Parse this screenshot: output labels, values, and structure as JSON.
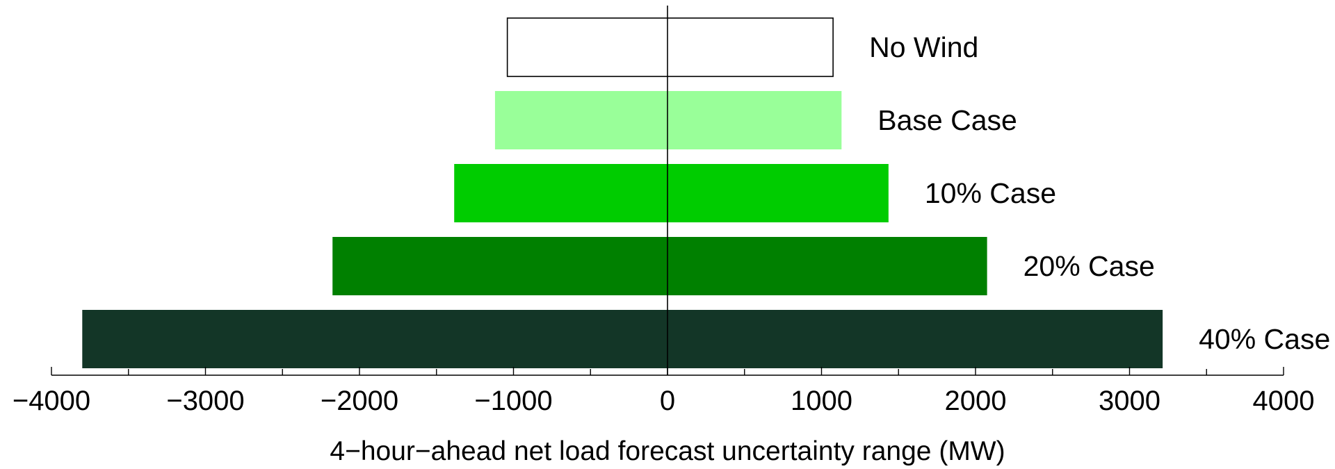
{
  "chart_data": {
    "type": "bar",
    "orientation": "horizontal",
    "xlabel": "4−hour−ahead net load forecast uncertainty range (MW)",
    "xlim": [
      -4000,
      4000
    ],
    "xticks": [
      -4000,
      -3000,
      -2000,
      -1000,
      0,
      1000,
      2000,
      3000,
      4000
    ],
    "xtick_labels": [
      "−4000",
      "−3000",
      "−2000",
      "−1000",
      "0",
      "1000",
      "2000",
      "3000",
      "4000"
    ],
    "minor_tick_step": 500,
    "grid": false,
    "legend": "none",
    "series": [
      {
        "name": "No Wind",
        "low": -1040,
        "high": 1075,
        "color": "#ffffff",
        "stroke": "#000000"
      },
      {
        "name": "Base Case",
        "low": -1120,
        "high": 1130,
        "color": "#99ff99"
      },
      {
        "name": "10% Case",
        "low": -1385,
        "high": 1435,
        "color": "#00cc00"
      },
      {
        "name": "20% Case",
        "low": -2175,
        "high": 2075,
        "color": "#008000"
      },
      {
        "name": "40% Case",
        "low": -3800,
        "high": 3215,
        "color": "#133627"
      }
    ]
  }
}
